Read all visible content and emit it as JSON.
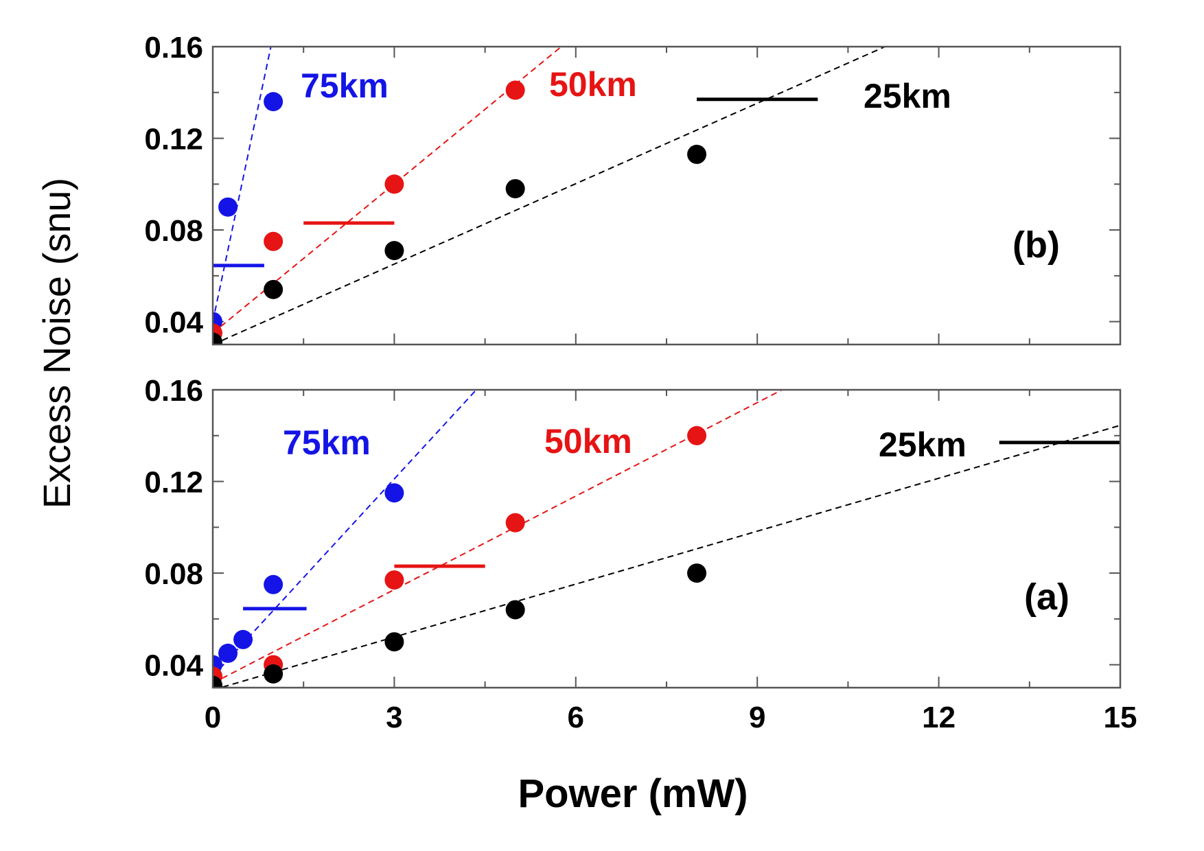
{
  "chart_data": {
    "type": "scatter",
    "xlabel": "Power (mW)",
    "ylabel": "Excess Noise (snu)",
    "xlim": [
      0,
      15
    ],
    "ylim": [
      0.03,
      0.16
    ],
    "x_ticks": [
      0,
      3,
      6,
      9,
      12,
      15
    ],
    "x_tick_labels": [
      "0",
      "3",
      "6",
      "9",
      "12",
      "15"
    ],
    "y_ticks": [
      0.04,
      0.08,
      0.12,
      0.16
    ],
    "y_tick_labels": [
      "0.04",
      "0.08",
      "0.12",
      "0.16"
    ],
    "panels": [
      {
        "id": "b",
        "label": "(b)",
        "position": "top",
        "series": [
          {
            "name": "75km",
            "color": "#1414e6",
            "x": [
              0,
              0.25,
              1
            ],
            "y": [
              0.04,
              0.09,
              0.136
            ],
            "fit": {
              "x0": 0,
              "y0": 0.04,
              "slope": 0.125
            },
            "threshold": {
              "x_start": 0,
              "x_end": 0.85,
              "y": 0.0645
            }
          },
          {
            "name": "50km",
            "color": "#e61414",
            "x": [
              0,
              1,
              3,
              5
            ],
            "y": [
              0.035,
              0.075,
              0.1,
              0.141
            ],
            "fit": {
              "x0": 0,
              "y0": 0.035,
              "slope": 0.0217
            },
            "threshold": {
              "x_start": 1.5,
              "x_end": 3.0,
              "y": 0.083
            }
          },
          {
            "name": "25km",
            "color": "#000000",
            "x": [
              0,
              1,
              3,
              5,
              8
            ],
            "y": [
              0.031,
              0.054,
              0.071,
              0.098,
              0.113
            ],
            "fit": {
              "x0": 0,
              "y0": 0.03,
              "slope": 0.0117
            },
            "threshold": {
              "x_start": 8,
              "x_end": 10,
              "y": 0.137
            }
          }
        ]
      },
      {
        "id": "a",
        "label": "(a)",
        "position": "bottom",
        "series": [
          {
            "name": "75km",
            "color": "#1414e6",
            "x": [
              0,
              0.25,
              0.5,
              1,
              3
            ],
            "y": [
              0.04,
              0.045,
              0.051,
              0.075,
              0.115
            ],
            "fit": {
              "x0": 0,
              "y0": 0.035,
              "slope": 0.0287
            },
            "threshold": {
              "x_start": 0.5,
              "x_end": 1.55,
              "y": 0.0645
            }
          },
          {
            "name": "50km",
            "color": "#e61414",
            "x": [
              0,
              1,
              3,
              5,
              8
            ],
            "y": [
              0.035,
              0.04,
              0.077,
              0.102,
              0.14
            ],
            "fit": {
              "x0": 0,
              "y0": 0.032,
              "slope": 0.0136
            },
            "threshold": {
              "x_start": 3,
              "x_end": 4.5,
              "y": 0.083
            }
          },
          {
            "name": "25km",
            "color": "#000000",
            "x": [
              0,
              1,
              3,
              5,
              8
            ],
            "y": [
              0.031,
              0.036,
              0.05,
              0.064,
              0.08
            ],
            "fit": {
              "x0": 0,
              "y0": 0.029,
              "slope": 0.0077
            },
            "threshold": {
              "x_start": 13,
              "x_end": 15,
              "y": 0.137
            }
          }
        ]
      }
    ]
  }
}
